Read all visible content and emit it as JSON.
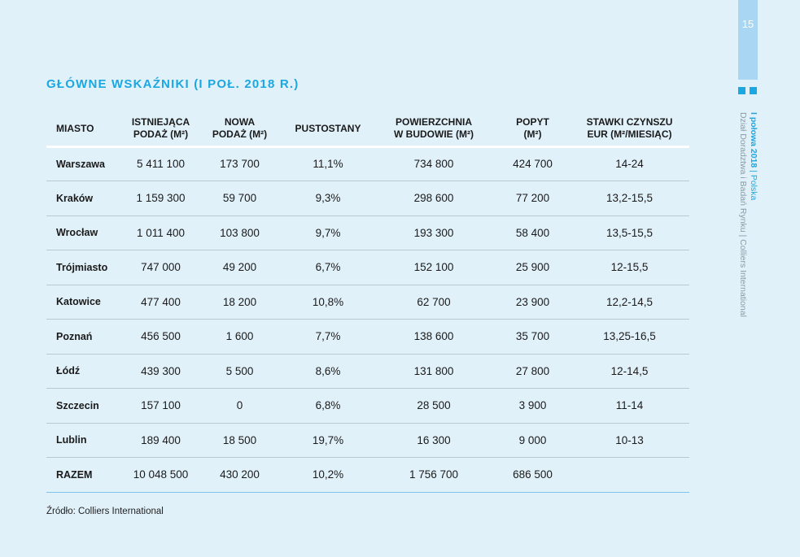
{
  "page_number": "15",
  "side": {
    "report_bold": "I połowa 2018",
    "separator": " | ",
    "country": "Polska",
    "department": "Dział Doradztwa i Badań Rynku | Colliers International"
  },
  "title": "GŁÓWNE WSKAŹNIKI (I POŁ. 2018 R.)",
  "table": {
    "headers": [
      {
        "line1": "MIASTO",
        "line2": ""
      },
      {
        "line1": "ISTNIEJĄCA",
        "line2": "PODAŻ (M²)"
      },
      {
        "line1": "NOWA",
        "line2": "PODAŻ (M²)"
      },
      {
        "line1": "PUSTOSTANY",
        "line2": ""
      },
      {
        "line1": "POWIERZCHNIA",
        "line2": "W BUDOWIE (M²)"
      },
      {
        "line1": "POPYT",
        "line2": "(M²)"
      },
      {
        "line1": "STAWKI CZYNSZU",
        "line2": "EUR (M²/MIESIĄC)"
      }
    ],
    "rows": [
      [
        "Warszawa",
        "5 411 100",
        "173 700",
        "11,1%",
        "734 800",
        "424 700",
        "14-24"
      ],
      [
        "Kraków",
        "1 159 300",
        "59 700",
        "9,3%",
        "298 600",
        "77 200",
        "13,2-15,5"
      ],
      [
        "Wrocław",
        "1 011 400",
        "103 800",
        "9,7%",
        "193 300",
        "58 400",
        "13,5-15,5"
      ],
      [
        "Trójmiasto",
        "747 000",
        "49 200",
        "6,7%",
        "152 100",
        "25 900",
        "12-15,5"
      ],
      [
        "Katowice",
        "477 400",
        "18 200",
        "10,8%",
        "62 700",
        "23 900",
        "12,2-14,5"
      ],
      [
        "Poznań",
        "456 500",
        "1 600",
        "7,7%",
        "138 600",
        "35 700",
        "13,25-16,5"
      ],
      [
        "Łódź",
        "439 300",
        "5 500",
        "8,6%",
        "131 800",
        "27 800",
        "12-14,5"
      ],
      [
        "Szczecin",
        "157 100",
        "0",
        "6,8%",
        "28 500",
        "3 900",
        "11-14"
      ],
      [
        "Lublin",
        "189 400",
        "18 500",
        "19,7%",
        "16 300",
        "9 000",
        "10-13"
      ],
      [
        "RAZEM",
        "10 048 500",
        "430 200",
        "10,2%",
        "1 756 700",
        "686 500",
        ""
      ]
    ]
  },
  "source": "Źródło: Colliers International"
}
